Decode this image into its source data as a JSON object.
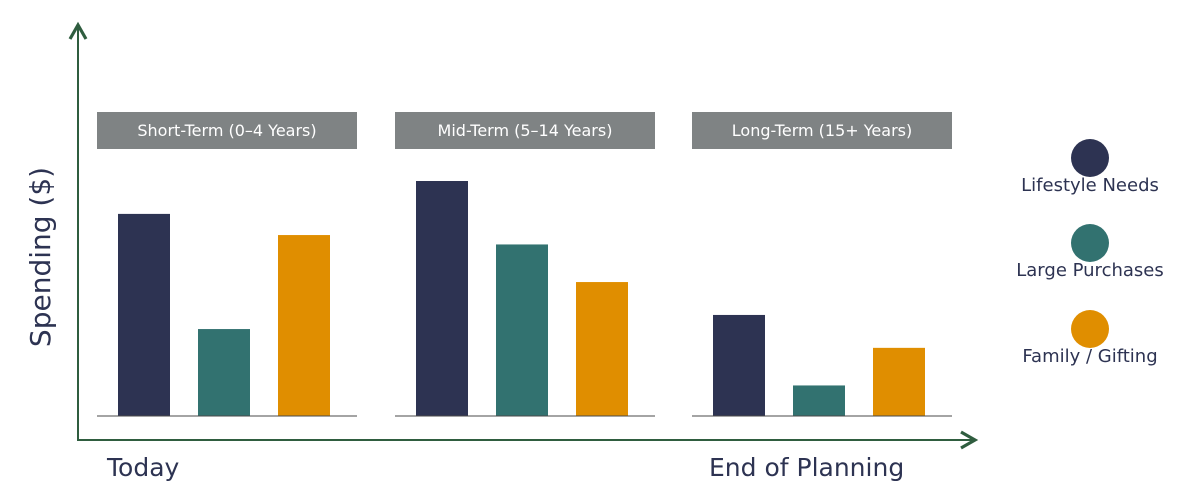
{
  "colors": {
    "axis": "#2f5d3f",
    "label_box": "#7f8384",
    "text": "#2d3352"
  },
  "chart_data": {
    "type": "bar",
    "ylabel": "Spending ($)",
    "x_start_label": "Today",
    "x_end_label": "End of Planning",
    "ylim": [
      0,
      100
    ],
    "groups": [
      {
        "label": "Short-Term (0–4 Years)",
        "values": [
          86,
          37,
          77
        ]
      },
      {
        "label": "Mid-Term (5–14 Years)",
        "values": [
          100,
          73,
          57
        ]
      },
      {
        "label": "Long-Term (15+ Years)",
        "values": [
          43,
          13,
          29
        ]
      }
    ],
    "series": [
      {
        "name": "Lifestyle Needs",
        "color": "#2d3352"
      },
      {
        "name": "Large Purchases",
        "color": "#327270"
      },
      {
        "name": "Family / Gifting",
        "color": "#e08e00"
      }
    ],
    "legend_position": "right",
    "grid": false
  }
}
